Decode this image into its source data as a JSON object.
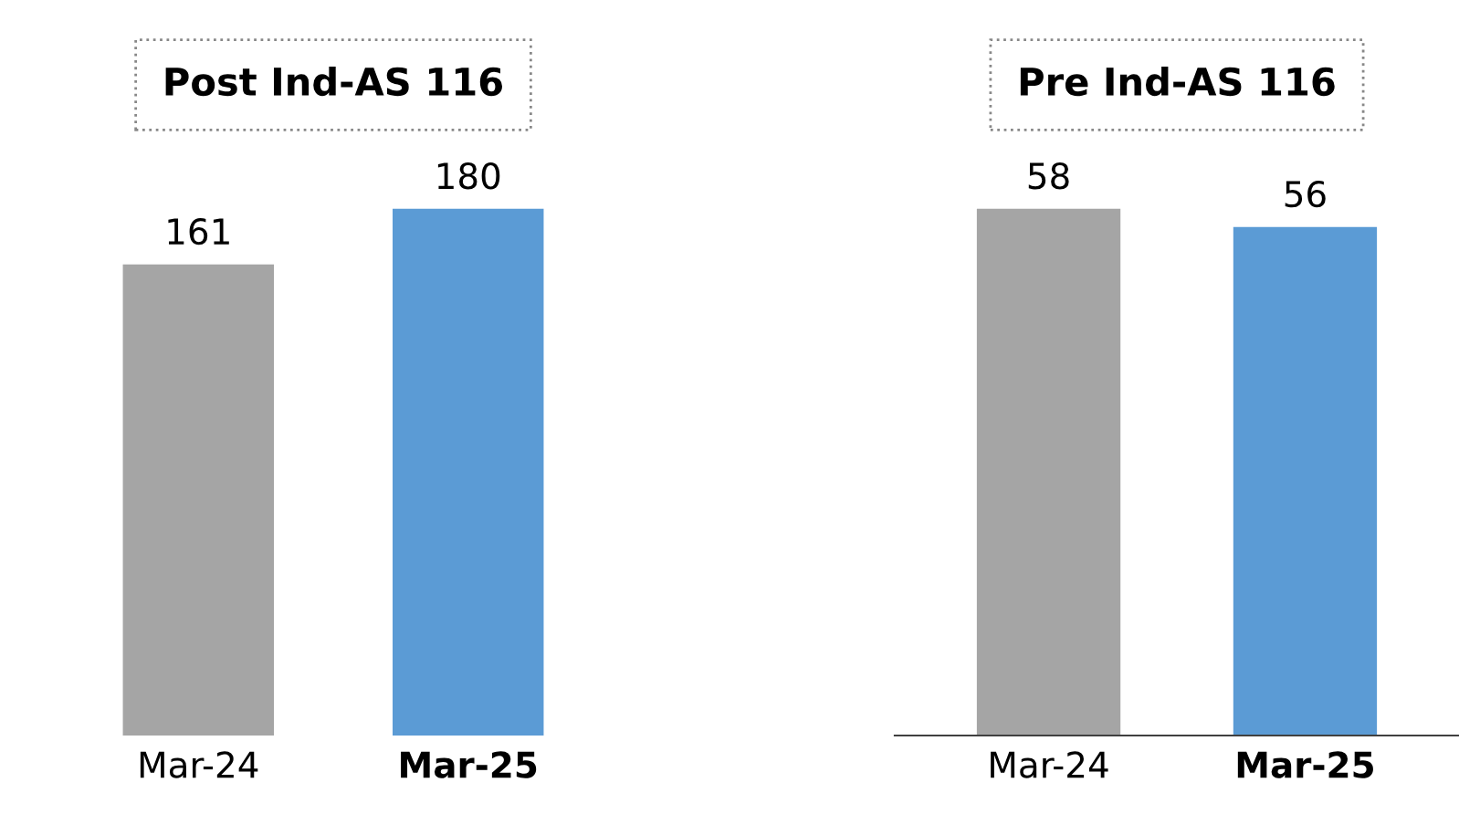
{
  "chart_data": [
    {
      "type": "bar",
      "title": "Post Ind-AS 116",
      "categories": [
        "Mar-24",
        "Mar-25"
      ],
      "values": [
        161,
        180
      ],
      "colors": [
        "#a5a5a5",
        "#5b9bd5"
      ],
      "data_labels": true,
      "tick_labels": "x",
      "grid": false,
      "legend": false
    },
    {
      "type": "bar",
      "title": "Pre Ind-AS 116",
      "categories": [
        "Mar-24",
        "Mar-25"
      ],
      "values": [
        58,
        56
      ],
      "colors": [
        "#a5a5a5",
        "#5b9bd5"
      ],
      "data_labels": true,
      "tick_labels": "x",
      "grid": false,
      "legend": false
    }
  ]
}
